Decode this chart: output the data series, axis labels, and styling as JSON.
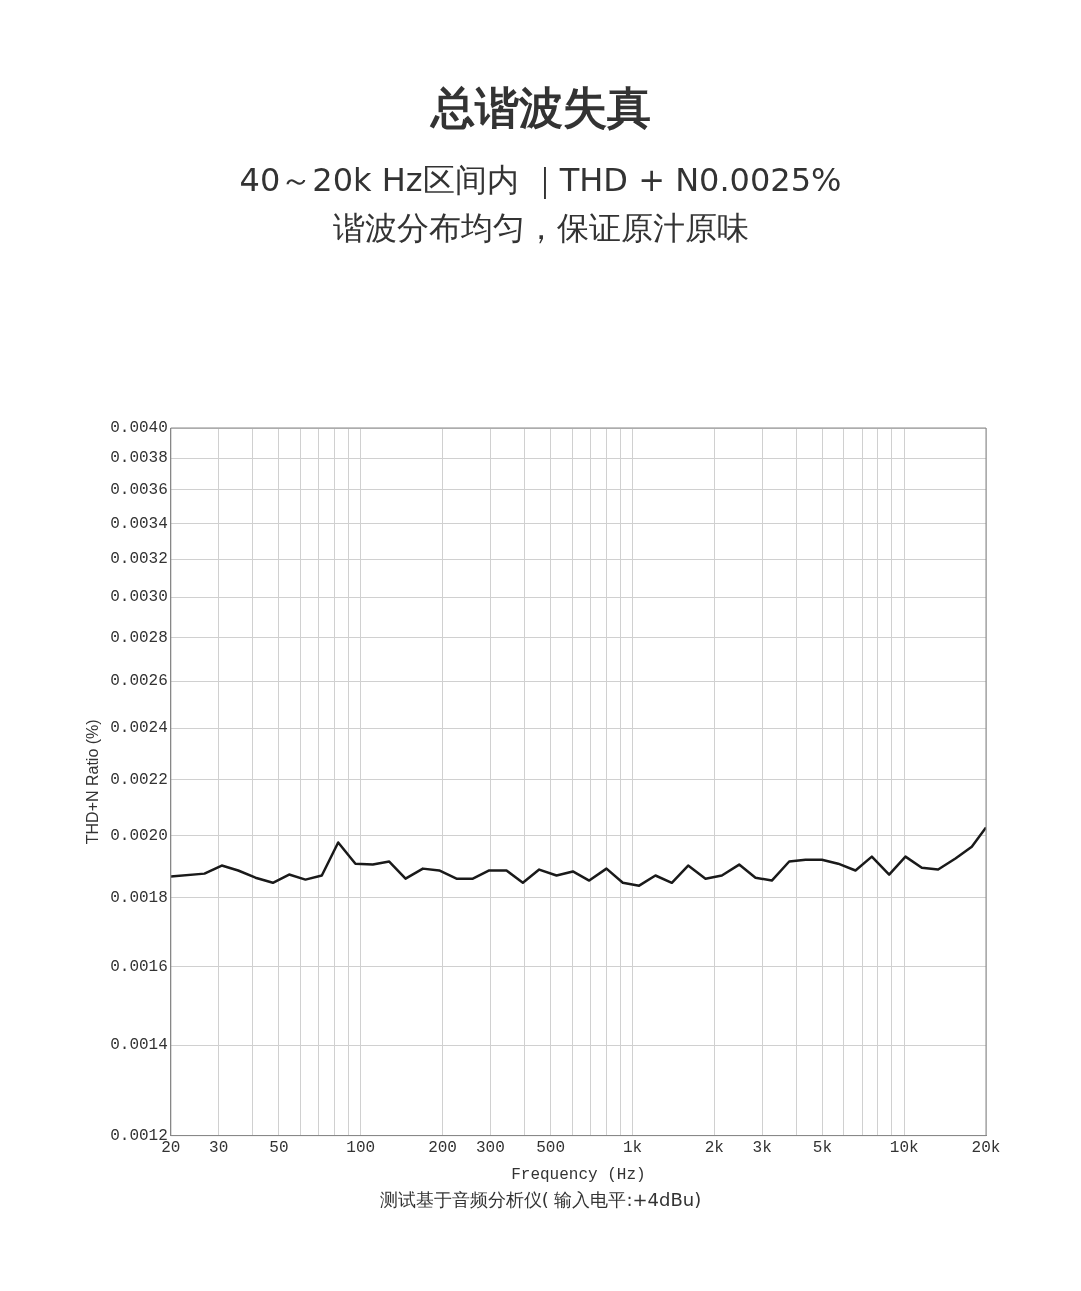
{
  "chart_data": {
    "type": "line",
    "title": "总谐波失真",
    "subtitle": "40～20k Hz区间内 ｜THD + N0.0025%",
    "annotations": [
      "谐波分布均匀，保证原汁原味",
      "测试基于音频分析仪( 输入电平:+4dBu)"
    ],
    "xlabel": "Frequency (Hz)",
    "ylabel": "THD+N Ratio (%)",
    "log": "xy",
    "grid": true,
    "legend": false,
    "marker": "none",
    "line_style": "solid",
    "x": [
      20,
      26.6,
      30.8,
      35.4,
      41,
      47.5,
      54.5,
      62.6,
      71.9,
      82.6,
      95.6,
      110.8,
      127.3,
      146.2,
      169.3,
      194.4,
      225.1,
      258.6,
      297,
      343.9,
      395,
      453.6,
      525.6,
      603.4,
      693,
      802.3,
      921.4,
      1058,
      1215,
      1396,
      1603,
      1857,
      2133,
      2470,
      2836,
      3257,
      3774,
      4334,
      4977,
      5716,
      6618,
      7601,
      8802,
      10108,
      11610,
      13330,
      15440,
      17730,
      20000
    ],
    "series": [
      {
        "color": "#1a1a1a",
        "values": [
          0.001865,
          0.001874,
          0.0019,
          0.001884,
          0.001861,
          0.001845,
          0.001871,
          0.001855,
          0.001868,
          0.001976,
          0.001906,
          0.001903,
          0.001913,
          0.001858,
          0.00189,
          0.001884,
          0.001858,
          0.001858,
          0.001884,
          0.001884,
          0.001845,
          0.001887,
          0.001868,
          0.001881,
          0.001852,
          0.00189,
          0.001845,
          0.001836,
          0.001868,
          0.001845,
          0.0019,
          0.001858,
          0.001868,
          0.001903,
          0.001861,
          0.001852,
          0.001913,
          0.001919,
          0.001919,
          0.001906,
          0.001884,
          0.001929,
          0.001871,
          0.001929,
          0.001893,
          0.001887,
          0.001923,
          0.001962,
          0.002027
        ]
      }
    ],
    "xlim": [
      20,
      20000
    ],
    "ylim": [
      0.0012,
      0.004
    ],
    "xticks": [
      20,
      30,
      {
        "value": 40,
        "label": null
      },
      50,
      {
        "value": 60,
        "label": null
      },
      {
        "value": 70,
        "label": null
      },
      {
        "value": 80,
        "label": null
      },
      {
        "value": 90,
        "label": null
      },
      100,
      200,
      300,
      {
        "value": 400,
        "label": null
      },
      500,
      {
        "value": 600,
        "label": null
      },
      {
        "value": 700,
        "label": null
      },
      {
        "value": 800,
        "label": null
      },
      {
        "value": 900,
        "label": null
      },
      {
        "value": 1000,
        "label": "1k"
      },
      {
        "value": 2000,
        "label": "2k"
      },
      {
        "value": 3000,
        "label": "3k"
      },
      {
        "value": 4000,
        "label": null
      },
      {
        "value": 5000,
        "label": "5k"
      },
      {
        "value": 6000,
        "label": null
      },
      {
        "value": 7000,
        "label": null
      },
      {
        "value": 8000,
        "label": null
      },
      {
        "value": 9000,
        "label": null
      },
      {
        "value": 10000,
        "label": "10k"
      },
      {
        "value": 20000,
        "label": "20k"
      }
    ],
    "yticks": [
      {
        "value": 0.0012,
        "label": "0.0012"
      },
      {
        "value": 0.0014,
        "label": "0.0014"
      },
      {
        "value": 0.0016,
        "label": "0.0016"
      },
      {
        "value": 0.0018,
        "label": "0.0018"
      },
      {
        "value": 0.002,
        "label": "0.0020"
      },
      {
        "value": 0.0022,
        "label": "0.0022"
      },
      {
        "value": 0.0024,
        "label": "0.0024"
      },
      {
        "value": 0.0026,
        "label": "0.0026"
      },
      {
        "value": 0.0028,
        "label": "0.0028"
      },
      {
        "value": 0.003,
        "label": "0.0030"
      },
      {
        "value": 0.0032,
        "label": "0.0032"
      },
      {
        "value": 0.0034,
        "label": "0.0034"
      },
      {
        "value": 0.0036,
        "label": "0.0036"
      },
      {
        "value": 0.0038,
        "label": "0.0038"
      },
      {
        "value": 0.004,
        "label": "0.0040"
      }
    ]
  }
}
